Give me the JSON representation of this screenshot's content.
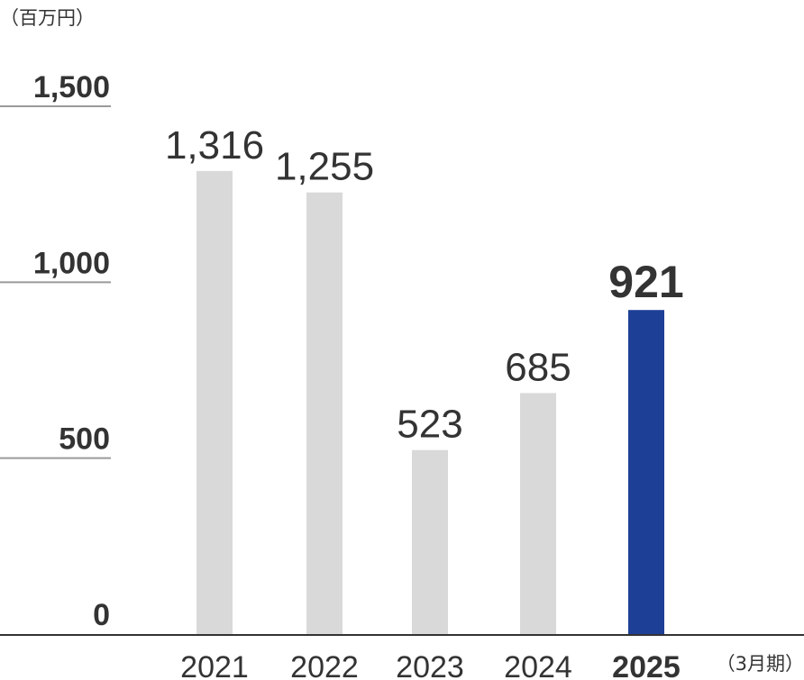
{
  "chart_data": {
    "type": "bar",
    "unit_label": "（百万円）",
    "period_label": "（3月期）",
    "categories": [
      "2021",
      "2022",
      "2023",
      "2024",
      "2025"
    ],
    "values": [
      1316,
      1255,
      523,
      685,
      921
    ],
    "value_labels": [
      "1,316",
      "1,255",
      "523",
      "685",
      "921"
    ],
    "highlight_index": 4,
    "ylim": [
      0,
      1500
    ],
    "yticks": [
      {
        "value": 0,
        "label": "0"
      },
      {
        "value": 500,
        "label": "500"
      },
      {
        "value": 1000,
        "label": "1,000"
      },
      {
        "value": 1500,
        "label": "1,500"
      }
    ],
    "grid": "short tick marks on left",
    "colors": {
      "bar": "#d9d9d9",
      "highlight_bar": "#1e3f96",
      "highlight_label": "#1e3f96",
      "text": "#333333",
      "axis": "#333333",
      "gridline": "#9a9a9a"
    }
  }
}
